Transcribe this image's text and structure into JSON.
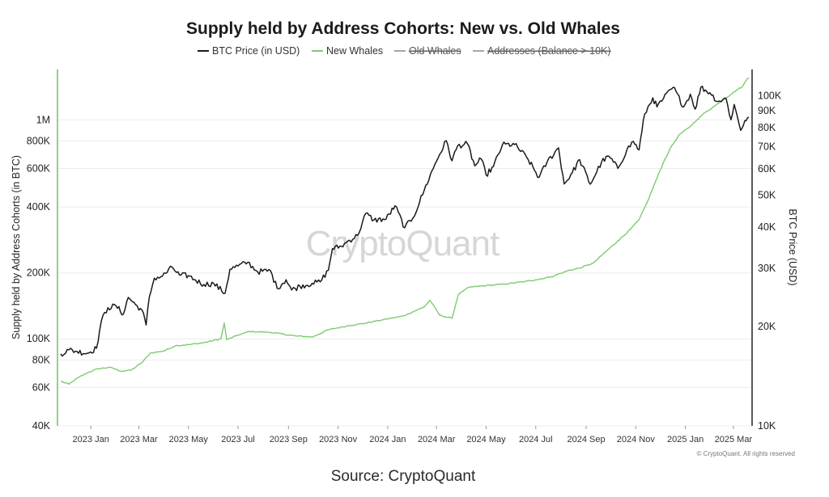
{
  "chart_data": {
    "type": "line",
    "title": "Supply held by Address Cohorts: New vs. Old Whales",
    "legend": [
      {
        "label": "BTC Price (in USD)",
        "color": "#1a1a1a",
        "enabled": true
      },
      {
        "label": "New Whales",
        "color": "#7fca72",
        "enabled": true
      },
      {
        "label": "Old Whales",
        "color": "#777777",
        "enabled": false
      },
      {
        "label": "Addresses (Balance > 10K)",
        "color": "#777777",
        "enabled": false
      }
    ],
    "legend_placement": "top-center",
    "y_left": {
      "label": "Supply held by Address Cohorts (in BTC)",
      "scale": "log",
      "range": [
        40000,
        1700000
      ],
      "ticks": [
        {
          "value": 40000,
          "label": "40K"
        },
        {
          "value": 60000,
          "label": "60K"
        },
        {
          "value": 80000,
          "label": "80K"
        },
        {
          "value": 100000,
          "label": "100K"
        },
        {
          "value": 200000,
          "label": "200K"
        },
        {
          "value": 400000,
          "label": "400K"
        },
        {
          "value": 600000,
          "label": "600K"
        },
        {
          "value": 800000,
          "label": "800K"
        },
        {
          "value": 1000000,
          "label": "1M"
        }
      ]
    },
    "y_right": {
      "label": "BTC Price (USD)",
      "scale": "log",
      "range": [
        10000,
        120000
      ],
      "ticks": [
        {
          "value": 10000,
          "label": "10K"
        },
        {
          "value": 20000,
          "label": "20K"
        },
        {
          "value": 30000,
          "label": "30K"
        },
        {
          "value": 40000,
          "label": "40K"
        },
        {
          "value": 50000,
          "label": "50K"
        },
        {
          "value": 60000,
          "label": "60K"
        },
        {
          "value": 70000,
          "label": "70K"
        },
        {
          "value": 80000,
          "label": "80K"
        },
        {
          "value": 90000,
          "label": "90K"
        },
        {
          "value": 100000,
          "label": "100K"
        }
      ]
    },
    "x": {
      "range": [
        "2022-11-23",
        "2025-03-22"
      ],
      "ticks": [
        {
          "date": "2023-01-01",
          "label": "2023 Jan"
        },
        {
          "date": "2023-03-01",
          "label": "2023 Mar"
        },
        {
          "date": "2023-05-01",
          "label": "2023 May"
        },
        {
          "date": "2023-07-01",
          "label": "2023 Jul"
        },
        {
          "date": "2023-09-01",
          "label": "2023 Sep"
        },
        {
          "date": "2023-11-01",
          "label": "2023 Nov"
        },
        {
          "date": "2024-01-01",
          "label": "2024 Jan"
        },
        {
          "date": "2024-03-01",
          "label": "2024 Mar"
        },
        {
          "date": "2024-05-01",
          "label": "2024 May"
        },
        {
          "date": "2024-07-01",
          "label": "2024 Jul"
        },
        {
          "date": "2024-09-01",
          "label": "2024 Sep"
        },
        {
          "date": "2024-11-01",
          "label": "2024 Nov"
        },
        {
          "date": "2025-01-01",
          "label": "2025 Jan"
        },
        {
          "date": "2025-03-01",
          "label": "2025 Mar"
        }
      ]
    },
    "grid": true,
    "series": [
      {
        "name": "BTC Price (in USD)",
        "axis": "right",
        "color": "#1a1a1a",
        "points": [
          [
            "2022-11-25",
            16500
          ],
          [
            "2022-12-05",
            17000
          ],
          [
            "2022-12-15",
            16800
          ],
          [
            "2022-12-28",
            16600
          ],
          [
            "2023-01-08",
            17200
          ],
          [
            "2023-01-14",
            20800
          ],
          [
            "2023-01-22",
            22800
          ],
          [
            "2023-02-01",
            23100
          ],
          [
            "2023-02-10",
            21800
          ],
          [
            "2023-02-16",
            24500
          ],
          [
            "2023-02-25",
            23300
          ],
          [
            "2023-03-05",
            22400
          ],
          [
            "2023-03-10",
            20200
          ],
          [
            "2023-03-14",
            24600
          ],
          [
            "2023-03-20",
            28000
          ],
          [
            "2023-03-30",
            28400
          ],
          [
            "2023-04-11",
            30200
          ],
          [
            "2023-04-20",
            28600
          ],
          [
            "2023-05-01",
            28500
          ],
          [
            "2023-05-10",
            27600
          ],
          [
            "2023-05-20",
            26800
          ],
          [
            "2023-06-01",
            27000
          ],
          [
            "2023-06-15",
            25200
          ],
          [
            "2023-06-21",
            29800
          ],
          [
            "2023-07-01",
            30500
          ],
          [
            "2023-07-13",
            31300
          ],
          [
            "2023-07-25",
            29300
          ],
          [
            "2023-08-10",
            29500
          ],
          [
            "2023-08-18",
            26100
          ],
          [
            "2023-08-29",
            27700
          ],
          [
            "2023-09-05",
            25800
          ],
          [
            "2023-09-15",
            26500
          ],
          [
            "2023-09-30",
            27000
          ],
          [
            "2023-10-10",
            27300
          ],
          [
            "2023-10-20",
            29600
          ],
          [
            "2023-10-25",
            34400
          ],
          [
            "2023-11-05",
            35000
          ],
          [
            "2023-11-15",
            36500
          ],
          [
            "2023-11-25",
            37700
          ],
          [
            "2023-12-05",
            44000
          ],
          [
            "2023-12-15",
            42000
          ],
          [
            "2023-12-30",
            42300
          ],
          [
            "2024-01-10",
            46400
          ],
          [
            "2024-01-22",
            39800
          ],
          [
            "2024-02-01",
            42600
          ],
          [
            "2024-02-15",
            51800
          ],
          [
            "2024-02-28",
            62000
          ],
          [
            "2024-03-05",
            66500
          ],
          [
            "2024-03-13",
            73100
          ],
          [
            "2024-03-20",
            63500
          ],
          [
            "2024-03-27",
            70500
          ],
          [
            "2024-04-08",
            71500
          ],
          [
            "2024-04-17",
            61300
          ],
          [
            "2024-04-25",
            64300
          ],
          [
            "2024-05-01",
            57500
          ],
          [
            "2024-05-10",
            61000
          ],
          [
            "2024-05-21",
            71000
          ],
          [
            "2024-06-05",
            71100
          ],
          [
            "2024-06-20",
            65000
          ],
          [
            "2024-07-05",
            56500
          ],
          [
            "2024-07-15",
            63000
          ],
          [
            "2024-07-29",
            69500
          ],
          [
            "2024-08-05",
            54000
          ],
          [
            "2024-08-15",
            58500
          ],
          [
            "2024-08-24",
            64000
          ],
          [
            "2024-09-06",
            53900
          ],
          [
            "2024-09-20",
            63000
          ],
          [
            "2024-09-29",
            65500
          ],
          [
            "2024-10-10",
            60200
          ],
          [
            "2024-10-21",
            68500
          ],
          [
            "2024-10-29",
            72700
          ],
          [
            "2024-11-05",
            68500
          ],
          [
            "2024-11-12",
            88000
          ],
          [
            "2024-11-22",
            98500
          ],
          [
            "2024-11-27",
            92500
          ],
          [
            "2024-12-05",
            98000
          ],
          [
            "2024-12-17",
            106000
          ],
          [
            "2024-12-30",
            92500
          ],
          [
            "2025-01-07",
            101000
          ],
          [
            "2025-01-13",
            91000
          ],
          [
            "2025-01-20",
            106000
          ],
          [
            "2025-01-31",
            102000
          ],
          [
            "2025-02-10",
            96000
          ],
          [
            "2025-02-20",
            98000
          ],
          [
            "2025-02-26",
            84500
          ],
          [
            "2025-03-02",
            94000
          ],
          [
            "2025-03-10",
            78500
          ],
          [
            "2025-03-15",
            84000
          ],
          [
            "2025-03-20",
            86000
          ]
        ]
      },
      {
        "name": "New Whales",
        "axis": "left",
        "color": "#7fca72",
        "points": [
          [
            "2022-11-25",
            64000
          ],
          [
            "2022-12-05",
            62000
          ],
          [
            "2022-12-15",
            66000
          ],
          [
            "2022-12-28",
            70000
          ],
          [
            "2023-01-10",
            73000
          ],
          [
            "2023-01-25",
            74000
          ],
          [
            "2023-02-08",
            71000
          ],
          [
            "2023-02-20",
            72000
          ],
          [
            "2023-03-05",
            78000
          ],
          [
            "2023-03-15",
            86000
          ],
          [
            "2023-04-01",
            88000
          ],
          [
            "2023-04-15",
            93000
          ],
          [
            "2023-05-01",
            94000
          ],
          [
            "2023-05-20",
            96000
          ],
          [
            "2023-06-10",
            100000
          ],
          [
            "2023-06-14",
            118000
          ],
          [
            "2023-06-17",
            99000
          ],
          [
            "2023-07-01",
            104000
          ],
          [
            "2023-07-15",
            108000
          ],
          [
            "2023-08-10",
            107000
          ],
          [
            "2023-09-10",
            103000
          ],
          [
            "2023-10-01",
            102000
          ],
          [
            "2023-10-20",
            110000
          ],
          [
            "2023-11-15",
            115000
          ],
          [
            "2023-12-05",
            118000
          ],
          [
            "2023-12-25",
            122000
          ],
          [
            "2024-01-20",
            127000
          ],
          [
            "2024-02-15",
            140000
          ],
          [
            "2024-02-22",
            150000
          ],
          [
            "2024-03-05",
            128000
          ],
          [
            "2024-03-20",
            124000
          ],
          [
            "2024-03-28",
            160000
          ],
          [
            "2024-04-10",
            172000
          ],
          [
            "2024-05-01",
            175000
          ],
          [
            "2024-05-25",
            178000
          ],
          [
            "2024-06-15",
            182000
          ],
          [
            "2024-07-01",
            186000
          ],
          [
            "2024-07-20",
            192000
          ],
          [
            "2024-08-10",
            205000
          ],
          [
            "2024-08-25",
            211000
          ],
          [
            "2024-09-10",
            222000
          ],
          [
            "2024-09-25",
            250000
          ],
          [
            "2024-10-10",
            280000
          ],
          [
            "2024-10-25",
            315000
          ],
          [
            "2024-11-05",
            350000
          ],
          [
            "2024-11-15",
            420000
          ],
          [
            "2024-11-25",
            520000
          ],
          [
            "2024-12-05",
            640000
          ],
          [
            "2024-12-15",
            760000
          ],
          [
            "2024-12-25",
            860000
          ],
          [
            "2025-01-05",
            920000
          ],
          [
            "2025-01-15",
            1000000
          ],
          [
            "2025-01-25",
            1080000
          ],
          [
            "2025-02-05",
            1150000
          ],
          [
            "2025-02-15",
            1230000
          ],
          [
            "2025-02-25",
            1300000
          ],
          [
            "2025-03-05",
            1370000
          ],
          [
            "2025-03-12",
            1420000
          ],
          [
            "2025-03-18",
            1540000
          ],
          [
            "2025-03-20",
            1560000
          ]
        ]
      }
    ]
  },
  "watermark": "CryptoQuant",
  "copyright": "© CryptoQuant. All rights reserved",
  "source": "Source: CryptoQuant"
}
